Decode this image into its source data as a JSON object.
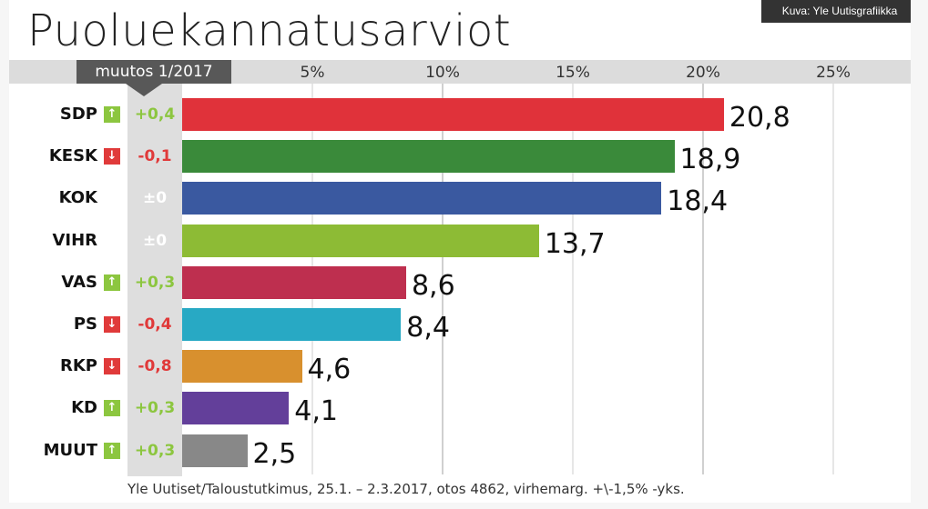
{
  "credit": "Kuva: Yle Uutisgrafiikka",
  "change_header": "muutos 1/2017",
  "source": "Yle Uutiset/Taloustutkimus, 25.1. – 2.3.2017, otos 4862, virhemarg. +\\-1,5% -yks.",
  "colors": {
    "positive": "#8cc63f",
    "negative": "#e03a3a",
    "neutral": "#ffffff"
  },
  "chart_data": {
    "type": "bar",
    "orientation": "horizontal",
    "title": "Puoluekannatusarviot",
    "xlim": [
      0,
      25
    ],
    "tick_values": [
      5,
      10,
      15,
      20,
      25
    ],
    "tick_labels": [
      "5%",
      "10%",
      "15%",
      "20%",
      "25%"
    ],
    "categories": [
      "SDP",
      "KESK",
      "KOK",
      "VIHR",
      "VAS",
      "PS",
      "RKP",
      "KD",
      "MUUT"
    ],
    "values": [
      20.8,
      18.9,
      18.4,
      13.7,
      8.6,
      8.4,
      4.6,
      4.1,
      2.5
    ],
    "value_labels": [
      "20,8",
      "18,9",
      "18,4",
      "13,7",
      "8,6",
      "8,4",
      "4,6",
      "4,1",
      "2,5"
    ],
    "changes": [
      0.4,
      -0.1,
      0,
      0,
      0.3,
      -0.4,
      -0.8,
      0.3,
      0.3
    ],
    "change_labels": [
      "+0,4",
      "-0,1",
      "±0",
      "±0",
      "+0,3",
      "-0,4",
      "-0,8",
      "+0,3",
      "+0,3"
    ],
    "trend": [
      "up",
      "down",
      "none",
      "none",
      "up",
      "down",
      "down",
      "up",
      "up"
    ],
    "bar_colors": [
      "#e0323a",
      "#3a8a3a",
      "#3a59a0",
      "#8dbb35",
      "#be2f4f",
      "#28a9c4",
      "#d8902e",
      "#633f9a",
      "#888888"
    ]
  }
}
